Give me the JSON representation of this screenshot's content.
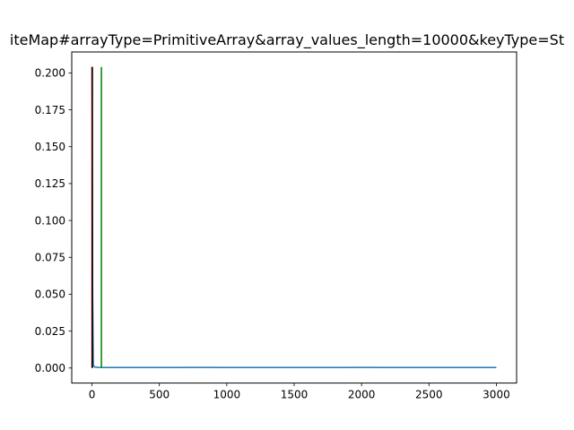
{
  "chart_data": {
    "type": "line",
    "title": "iteMap#arrayType=PrimitiveArray&array_values_length=10000&keyType=St",
    "xlabel": "",
    "ylabel": "",
    "xlim": [
      -150,
      3150
    ],
    "ylim": [
      -0.0102,
      0.2142
    ],
    "xticks": [
      0,
      500,
      1000,
      1500,
      2000,
      2500,
      3000
    ],
    "yticks": [
      0.0,
      0.025,
      0.05,
      0.075,
      0.1,
      0.125,
      0.15,
      0.175,
      0.2
    ],
    "ytick_labels": [
      "0.000",
      "0.025",
      "0.050",
      "0.075",
      "0.100",
      "0.125",
      "0.150",
      "0.175",
      "0.200"
    ],
    "grid": false,
    "series": [
      {
        "color": "#1f77b4",
        "x": [
          0,
          5,
          10,
          20,
          50,
          100,
          200,
          400,
          600,
          800,
          1000,
          1200,
          1400,
          1600,
          1800,
          2000,
          2200,
          2400,
          2600,
          2800,
          3000
        ],
        "y": [
          0.204,
          0.05,
          0.002,
          0.0006,
          0.0004,
          0.0003,
          0.0003,
          0.0003,
          0.0003,
          0.0004,
          0.0003,
          0.0003,
          0.0003,
          0.0003,
          0.0003,
          0.0004,
          0.0003,
          0.0003,
          0.0003,
          0.0003,
          0.0003
        ]
      }
    ],
    "vlines": [
      {
        "x": 0,
        "y": [
          0,
          0.204
        ],
        "color": "#ff0000"
      },
      {
        "x": 3,
        "y": [
          0,
          0.204
        ],
        "color": "#000000"
      },
      {
        "x": 70,
        "y": [
          0,
          0.204
        ],
        "color": "#008000"
      }
    ]
  }
}
